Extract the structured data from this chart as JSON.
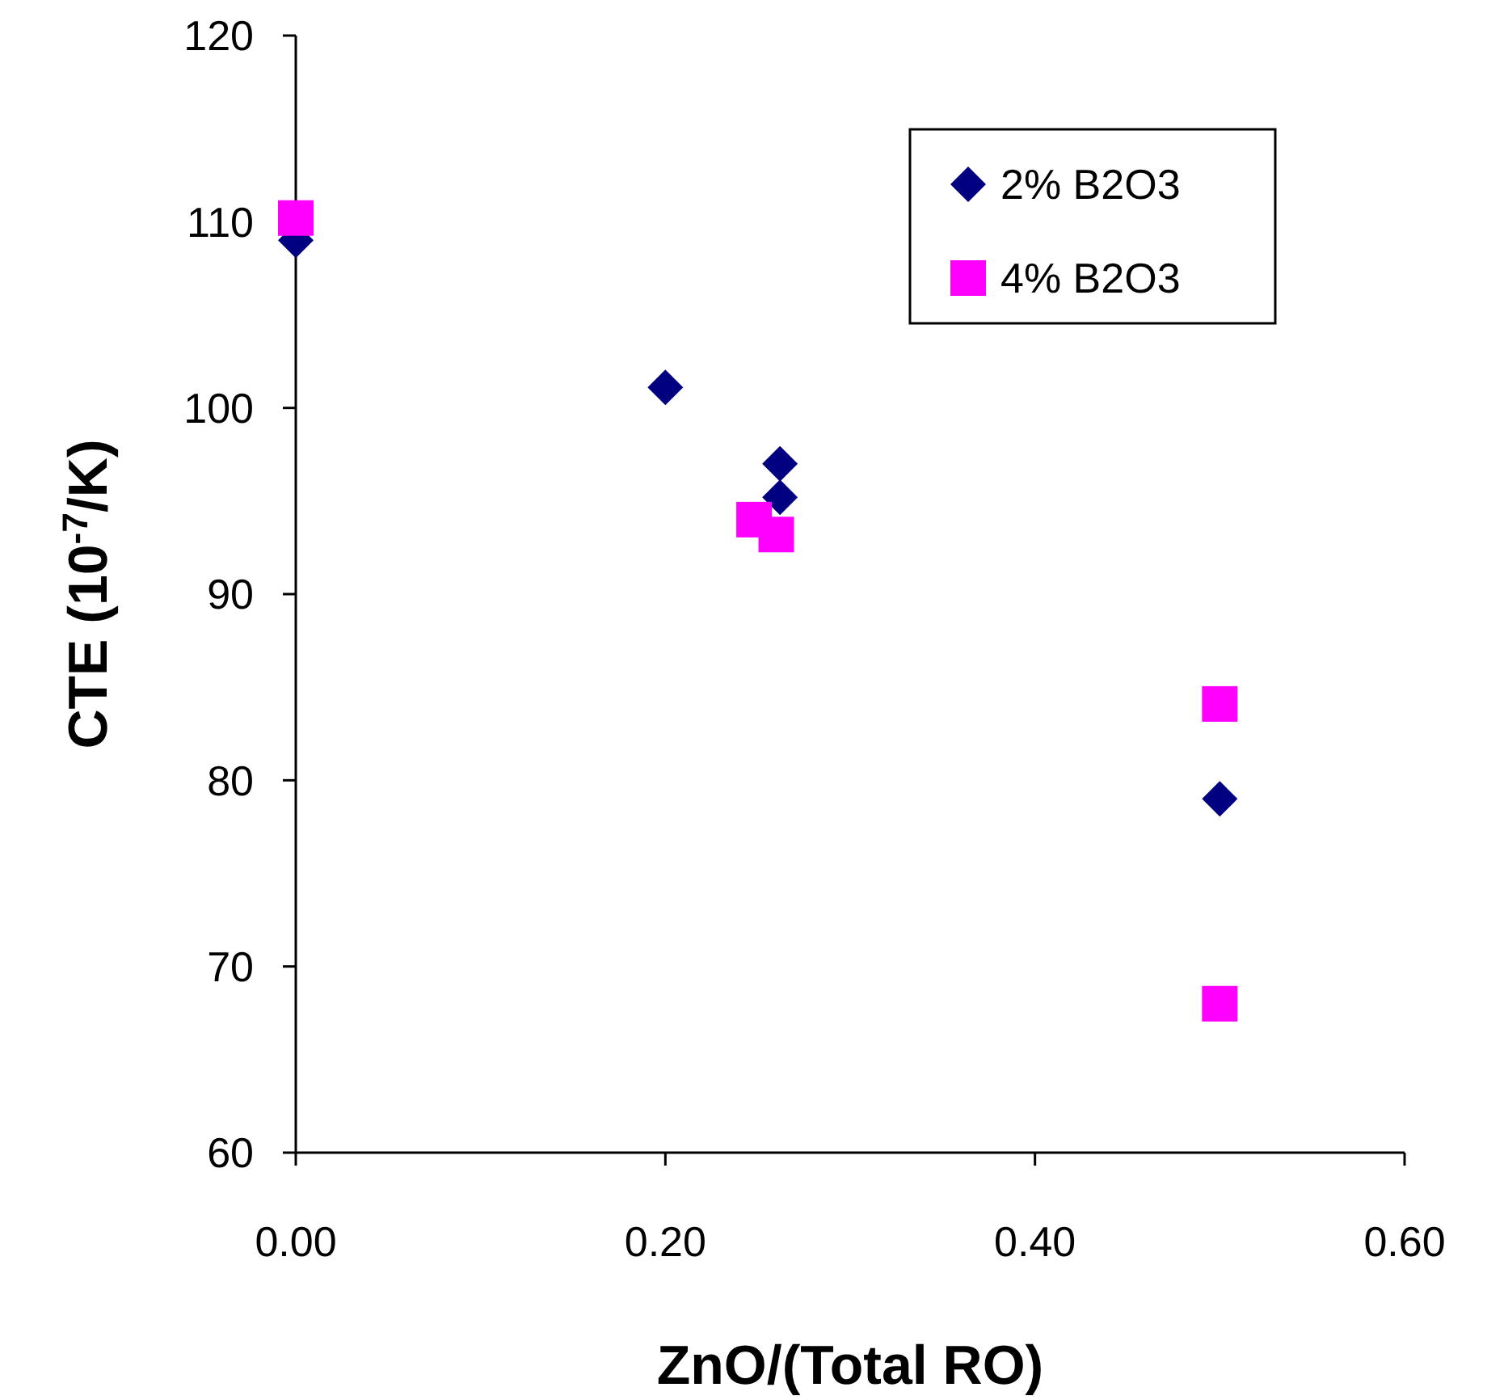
{
  "chart_data": {
    "type": "scatter",
    "xlabel": "ZnO/(Total RO)",
    "ylabel": "CTE (10$^{-7}$/K)",
    "xlim": [
      0,
      0.6
    ],
    "xticks": [
      {
        "value": 0,
        "label": "0.00"
      },
      {
        "value": 0.2,
        "label": "0.20"
      },
      {
        "value": 0.4,
        "label": "0.40"
      },
      {
        "value": 0.6,
        "label": "0.60"
      }
    ],
    "ylim": [
      60,
      120
    ],
    "yticks": [
      60,
      70,
      80,
      90,
      100,
      110,
      120
    ],
    "grid": false,
    "legend": "top right",
    "series": [
      {
        "name": "2% B2O3",
        "color": "#000080",
        "marker": "diamond",
        "x": [
          0,
          0.2,
          0.262,
          0.262,
          0.5
        ],
        "values": [
          109,
          101.1,
          97,
          95.2,
          79
        ]
      },
      {
        "name": "4% B2O3",
        "color": "#ff00ff",
        "marker": "square",
        "x": [
          0,
          0.248,
          0.26,
          0.5,
          0.5
        ],
        "values": [
          110.2,
          94,
          93.2,
          84.1,
          68
        ]
      }
    ]
  }
}
